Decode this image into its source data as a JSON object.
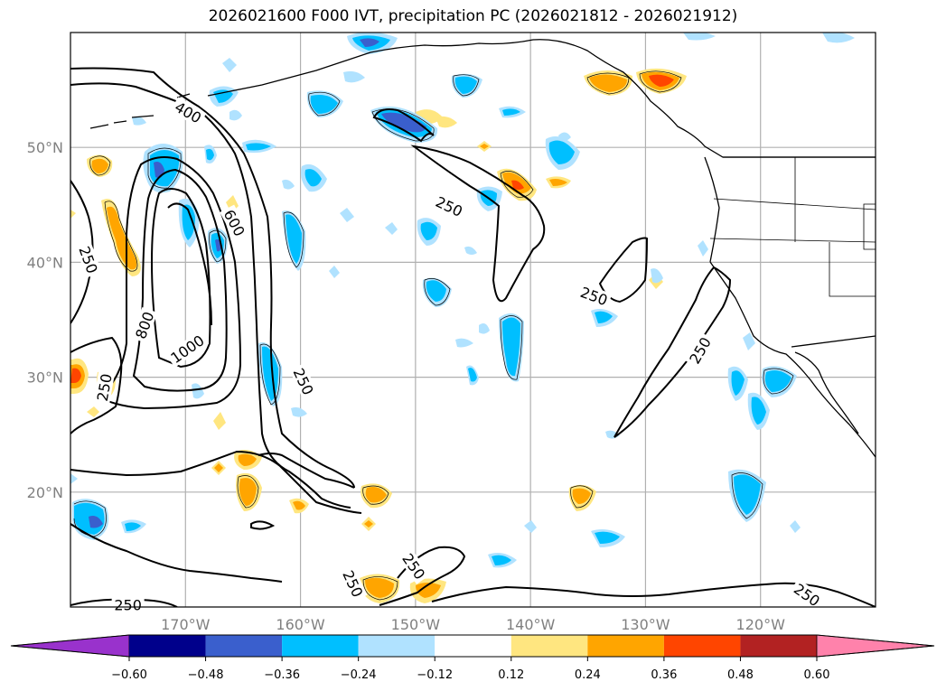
{
  "title": "2026021600 F000 IVT, precipitation PC (2026021812 - 2026021912)",
  "chart_data": {
    "type": "map",
    "title": "2026021600 F000 IVT, precipitation PC (2026021812 - 2026021912)",
    "lon_range": [
      -180,
      -110
    ],
    "lat_range": [
      10,
      60
    ],
    "lon_ticks": [
      {
        "value": -170,
        "label": "170°W"
      },
      {
        "value": -160,
        "label": "160°W"
      },
      {
        "value": -150,
        "label": "150°W"
      },
      {
        "value": -140,
        "label": "140°W"
      },
      {
        "value": -130,
        "label": "130°W"
      },
      {
        "value": -120,
        "label": "120°W"
      }
    ],
    "lat_ticks": [
      {
        "value": 20,
        "label": "20°N"
      },
      {
        "value": 30,
        "label": "30°N"
      },
      {
        "value": 40,
        "label": "40°N"
      },
      {
        "value": 50,
        "label": "50°N"
      }
    ],
    "grid": true,
    "colorbar": {
      "orientation": "horizontal",
      "extend": "both",
      "levels": [
        -0.6,
        -0.48,
        -0.36,
        -0.24,
        -0.12,
        0.12,
        0.24,
        0.36,
        0.48,
        0.6
      ],
      "tick_labels": [
        "−0.60",
        "−0.48",
        "−0.36",
        "−0.24",
        "−0.12",
        "0.12",
        "0.24",
        "0.36",
        "0.48",
        "0.60"
      ],
      "colors": [
        "#9932cc",
        "#00008b",
        "#3a5fcd",
        "#00bfff",
        "#b0e2ff",
        "#ffffff",
        "#ffe680",
        "#ffa500",
        "#ff4500",
        "#b22222",
        "#ff82ab"
      ]
    },
    "ivt_contour_levels": [
      250,
      400,
      600,
      800,
      1000
    ],
    "ivt_contour_labels": [
      {
        "text": "400",
        "lon": -169.8,
        "lat": 53.0,
        "angle": 30
      },
      {
        "text": "600",
        "lon": -165.8,
        "lat": 43.4,
        "angle": 62
      },
      {
        "text": "250",
        "lon": -178.5,
        "lat": 40.2,
        "angle": 70
      },
      {
        "text": "800",
        "lon": -173.5,
        "lat": 34.5,
        "angle": -70
      },
      {
        "text": "1000",
        "lon": -169.8,
        "lat": 32.4,
        "angle": -35
      },
      {
        "text": "250",
        "lon": -159.8,
        "lat": 29.6,
        "angle": 65
      },
      {
        "text": "250",
        "lon": -177.0,
        "lat": 29.1,
        "angle": -80
      },
      {
        "text": "250",
        "lon": -147.1,
        "lat": 44.8,
        "angle": 25
      },
      {
        "text": "250",
        "lon": -134.5,
        "lat": 37.0,
        "angle": 20
      },
      {
        "text": "250",
        "lon": -125.2,
        "lat": 32.3,
        "angle": -60
      },
      {
        "text": "250",
        "lon": -150.2,
        "lat": 13.5,
        "angle": 55
      },
      {
        "text": "250",
        "lon": -155.5,
        "lat": 12.0,
        "angle": 65
      },
      {
        "text": "250",
        "lon": -175.0,
        "lat": 10.1,
        "angle": 0
      },
      {
        "text": "250",
        "lon": -116.0,
        "lat": 11.0,
        "angle": 35
      }
    ]
  }
}
